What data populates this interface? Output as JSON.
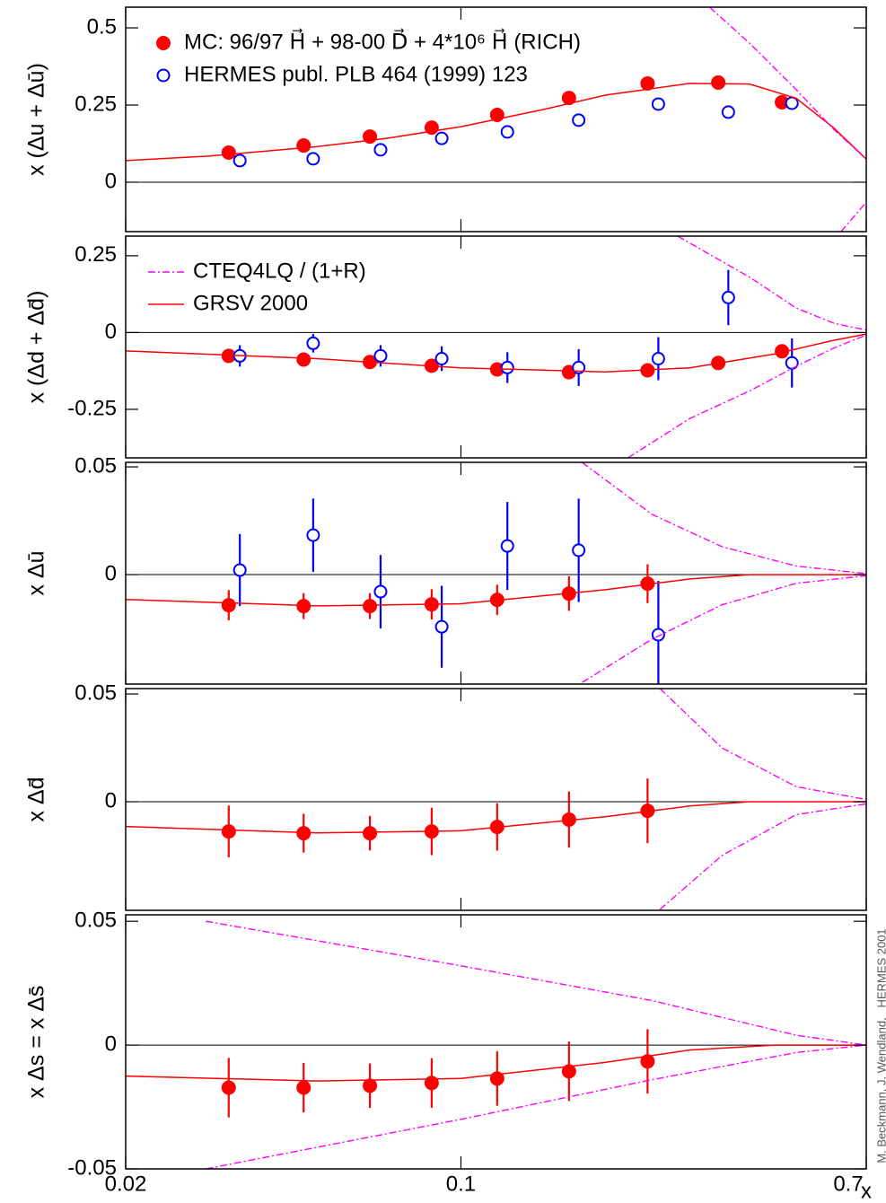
{
  "chart_data": [
    {
      "type": "scatter",
      "ylabel": "x (Δu + Δū)",
      "xlim": [
        0.02,
        0.7
      ],
      "log_x": true,
      "ylim": [
        -0.16,
        0.567
      ],
      "yticks": [
        0,
        0.25,
        0.5
      ],
      "series": [
        {
          "name": "MC: 96/97 H⃗ + 98-00 D⃗ + 4*10⁶ H⃗ (RICH)",
          "color": "#ff0000",
          "marker": "filled",
          "x": [
            0.0328,
            0.047,
            0.0646,
            0.0869,
            0.119,
            0.168,
            0.245,
            0.344,
            0.467
          ],
          "values": [
            0.096,
            0.119,
            0.148,
            0.177,
            0.218,
            0.273,
            0.32,
            0.323,
            0.259
          ]
        },
        {
          "name": "HERMES publ. PLB 464 (1999) 123",
          "color": "#0000ff",
          "marker": "open",
          "x": [
            0.0346,
            0.0492,
            0.068,
            0.0912,
            0.125,
            0.176,
            0.258,
            0.361,
            0.49
          ],
          "values": [
            0.07,
            0.076,
            0.105,
            0.142,
            0.163,
            0.201,
            0.253,
            0.227,
            0.256
          ],
          "errors": [
            0.004,
            0.004,
            0.004,
            0.005,
            0.005,
            0.006,
            0.008,
            0.012,
            0.008
          ]
        },
        {
          "color": "#ff0000",
          "line": "solid",
          "x": [
            0.02,
            0.03,
            0.05,
            0.07,
            0.1,
            0.15,
            0.2,
            0.3,
            0.4,
            0.5,
            0.6,
            0.7
          ],
          "values": [
            0.07,
            0.085,
            0.115,
            0.142,
            0.18,
            0.237,
            0.282,
            0.32,
            0.318,
            0.272,
            0.175,
            0.075
          ]
        },
        {
          "color": "#ff00ff",
          "line": "dashdot",
          "x": [
            0.33,
            0.4,
            0.5,
            0.6,
            0.7
          ],
          "values": [
            0.567,
            0.45,
            0.3,
            0.17,
            0.075
          ]
        },
        {
          "color": "#ff00ff",
          "line": "dashdot",
          "x": [
            0.62,
            0.7
          ],
          "values": [
            -0.16,
            -0.065
          ]
        }
      ]
    },
    {
      "type": "scatter",
      "ylabel": "x (Δd + Δd̄)",
      "xlim": [
        0.02,
        0.7
      ],
      "log_x": true,
      "ylim": [
        -0.408,
        0.314
      ],
      "yticks": [
        -0.25,
        0,
        0.25
      ],
      "series": [
        {
          "color": "#ff0000",
          "marker": "filled",
          "x": [
            0.0328,
            0.047,
            0.0646,
            0.0869,
            0.119,
            0.168,
            0.245,
            0.344,
            0.467
          ],
          "values": [
            -0.076,
            -0.088,
            -0.096,
            -0.108,
            -0.12,
            -0.129,
            -0.123,
            -0.099,
            -0.061
          ]
        },
        {
          "color": "#0000ff",
          "marker": "open",
          "x": [
            0.0346,
            0.0492,
            0.068,
            0.0912,
            0.125,
            0.176,
            0.258,
            0.361,
            0.49
          ],
          "values": [
            -0.076,
            -0.035,
            -0.076,
            -0.085,
            -0.114,
            -0.114,
            -0.085,
            0.114,
            -0.099
          ],
          "errors": [
            0.035,
            0.03,
            0.035,
            0.04,
            0.05,
            0.06,
            0.07,
            0.09,
            0.08
          ]
        },
        {
          "name": "CTEQ4LQ / (1+R)",
          "color": "#ff00ff",
          "line": "dashdot",
          "x": [
            0.283,
            0.4,
            0.5,
            0.6,
            0.7
          ],
          "values": [
            0.314,
            0.18,
            0.08,
            0.03,
            0.008
          ]
        },
        {
          "color": "#ff00ff",
          "line": "dashdot",
          "x": [
            0.223,
            0.3,
            0.4,
            0.5,
            0.6,
            0.7
          ],
          "values": [
            -0.408,
            -0.28,
            -0.19,
            -0.11,
            -0.05,
            -0.008
          ]
        },
        {
          "name": "GRSV 2000",
          "color": "#ff0000",
          "line": "solid",
          "x": [
            0.02,
            0.05,
            0.1,
            0.2,
            0.3,
            0.45,
            0.6,
            0.7
          ],
          "values": [
            -0.06,
            -0.085,
            -0.115,
            -0.128,
            -0.115,
            -0.07,
            -0.025,
            -0.005
          ]
        }
      ]
    },
    {
      "type": "scatter",
      "ylabel": "x Δū",
      "xlim": [
        0.02,
        0.7
      ],
      "log_x": true,
      "ylim": [
        -0.0508,
        0.0521
      ],
      "yticks": [
        0,
        0.05
      ],
      "series": [
        {
          "color": "#ff0000",
          "marker": "filled",
          "x": [
            0.0328,
            0.047,
            0.0646,
            0.0869,
            0.119,
            0.168,
            0.245
          ],
          "values": [
            -0.0142,
            -0.0146,
            -0.0146,
            -0.0138,
            -0.0117,
            -0.0088,
            -0.0042
          ],
          "errors": [
            0.007,
            0.006,
            0.006,
            0.007,
            0.007,
            0.008,
            0.009
          ]
        },
        {
          "color": "#0000ff",
          "marker": "open",
          "x": [
            0.0346,
            0.0492,
            0.068,
            0.0912,
            0.125,
            0.176,
            0.258
          ],
          "values": [
            0.0021,
            0.0183,
            -0.0079,
            -0.0242,
            0.0133,
            0.0113,
            -0.0279
          ],
          "errors": [
            0.0167,
            0.017,
            0.017,
            0.019,
            0.0204,
            0.024,
            0.025
          ]
        },
        {
          "color": "#ff0000",
          "line": "solid",
          "x": [
            0.02,
            0.05,
            0.1,
            0.2,
            0.3,
            0.4,
            0.7
          ],
          "values": [
            -0.0115,
            -0.0145,
            -0.0135,
            -0.007,
            -0.002,
            0,
            0
          ]
        },
        {
          "color": "#ff00ff",
          "line": "dashdot",
          "x": [
            0.179,
            0.25,
            0.35,
            0.5,
            0.7
          ],
          "values": [
            0.052,
            0.028,
            0.013,
            0.004,
            0.0005
          ]
        },
        {
          "color": "#ff00ff",
          "line": "dashdot",
          "x": [
            0.179,
            0.25,
            0.35,
            0.5,
            0.7
          ],
          "values": [
            -0.05,
            -0.03,
            -0.014,
            -0.004,
            -0.0005
          ]
        }
      ]
    },
    {
      "type": "scatter",
      "ylabel": "x Δd̄",
      "xlim": [
        0.02,
        0.7
      ],
      "log_x": true,
      "ylim": [
        -0.0504,
        0.0525
      ],
      "yticks": [
        0,
        0.05
      ],
      "series": [
        {
          "color": "#ff0000",
          "marker": "filled",
          "x": [
            0.0328,
            0.047,
            0.0646,
            0.0869,
            0.119,
            0.168,
            0.245
          ],
          "values": [
            -0.0138,
            -0.0146,
            -0.0146,
            -0.0138,
            -0.0117,
            -0.0083,
            -0.0042
          ],
          "errors": [
            0.012,
            0.009,
            0.008,
            0.011,
            0.011,
            0.013,
            0.015
          ]
        },
        {
          "color": "#ff0000",
          "line": "solid",
          "x": [
            0.02,
            0.05,
            0.1,
            0.2,
            0.3,
            0.4,
            0.7
          ],
          "values": [
            -0.0115,
            -0.0145,
            -0.0135,
            -0.007,
            -0.002,
            0,
            0
          ]
        },
        {
          "color": "#ff00ff",
          "line": "dashdot",
          "x": [
            0.26,
            0.35,
            0.5,
            0.7
          ],
          "values": [
            0.0525,
            0.025,
            0.007,
            0.001
          ]
        },
        {
          "color": "#ff00ff",
          "line": "dashdot",
          "x": [
            0.26,
            0.35,
            0.5,
            0.7
          ],
          "values": [
            -0.05,
            -0.025,
            -0.006,
            -0.001
          ]
        }
      ]
    },
    {
      "type": "scatter",
      "ylabel": "x Δs = x Δs̄",
      "xlim": [
        0.02,
        0.7
      ],
      "log_x": true,
      "ylim": [
        -0.05,
        0.0526
      ],
      "yticks": [
        -0.05,
        0,
        0.05
      ],
      "xticks": [
        0.02,
        0.1,
        0.7
      ],
      "xlabel": "x",
      "series": [
        {
          "color": "#ff0000",
          "marker": "filled",
          "x": [
            0.0328,
            0.047,
            0.0646,
            0.0869,
            0.119,
            0.168,
            0.245
          ],
          "values": [
            -0.0172,
            -0.0172,
            -0.0164,
            -0.0153,
            -0.0135,
            -0.0106,
            -0.0066
          ],
          "errors": [
            0.012,
            0.01,
            0.009,
            0.01,
            0.011,
            0.012,
            0.013
          ]
        },
        {
          "color": "#ff0000",
          "line": "solid",
          "x": [
            0.02,
            0.05,
            0.1,
            0.2,
            0.3,
            0.45,
            0.7
          ],
          "values": [
            -0.0125,
            -0.0145,
            -0.0135,
            -0.007,
            -0.002,
            0,
            0
          ]
        },
        {
          "color": "#ff00ff",
          "line": "dashdot",
          "x": [
            0.0294,
            0.1,
            0.25,
            0.5,
            0.7
          ],
          "values": [
            0.05,
            0.032,
            0.018,
            0.004,
            0
          ]
        },
        {
          "color": "#ff00ff",
          "line": "dashdot",
          "x": [
            0.0294,
            0.1,
            0.25,
            0.5,
            0.7
          ],
          "values": [
            -0.05,
            -0.03,
            -0.014,
            -0.003,
            0
          ]
        }
      ]
    }
  ],
  "credit": "M. Beckmann, J. Wendland,   HERMES 2001"
}
